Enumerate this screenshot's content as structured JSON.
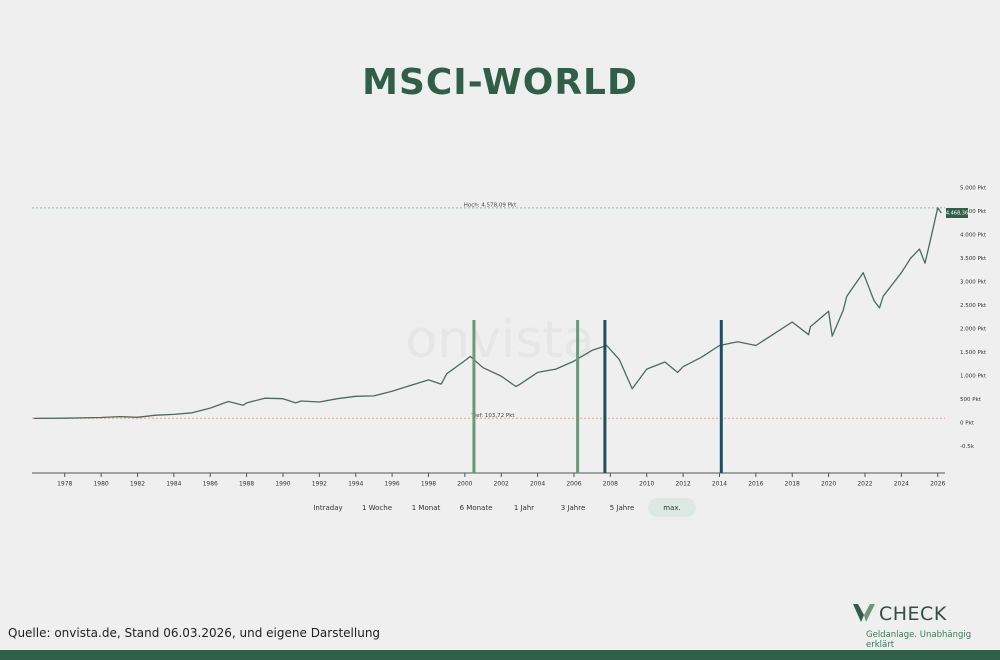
{
  "chart_data": {
    "type": "line",
    "title": "MSCI-WORLD",
    "watermark": "onvista",
    "x": [
      1976.3,
      1978,
      1980,
      1981,
      1982,
      1983,
      1984,
      1985,
      1986,
      1987,
      1987.8,
      1988,
      1989,
      1990,
      1990.7,
      1991,
      1992,
      1993,
      1994,
      1995,
      1996,
      1997,
      1998,
      1998.7,
      1999,
      2000,
      2000.3,
      2001,
      2002,
      2002.8,
      2003,
      2004,
      2005,
      2006,
      2007,
      2007.8,
      2008.5,
      2009.2,
      2010,
      2011,
      2011.7,
      2012,
      2013,
      2014,
      2015,
      2016,
      2017,
      2018,
      2018.9,
      2019,
      2020,
      2020.2,
      2020.8,
      2021,
      2021.9,
      2022.5,
      2022.8,
      2023,
      2023.5,
      2024,
      2024.5,
      2025,
      2025.3,
      2025.6,
      2026,
      2026.2
    ],
    "values": [
      100,
      105,
      120,
      140,
      125,
      170,
      185,
      220,
      320,
      460,
      380,
      430,
      530,
      520,
      430,
      470,
      450,
      520,
      570,
      580,
      680,
      800,
      920,
      830,
      1050,
      1330,
      1420,
      1180,
      1000,
      780,
      820,
      1080,
      1150,
      1320,
      1550,
      1650,
      1350,
      730,
      1150,
      1300,
      1080,
      1200,
      1400,
      1650,
      1730,
      1650,
      1900,
      2150,
      1880,
      2050,
      2380,
      1850,
      2400,
      2700,
      3200,
      2600,
      2450,
      2700,
      2950,
      3200,
      3500,
      3700,
      3400,
      3900,
      4578,
      4468
    ],
    "color": "#4a6b5c",
    "xlim": [
      1976.2,
      2026.4
    ],
    "ylim": [
      -1060,
      5170
    ],
    "xticks": [
      1978,
      1980,
      1982,
      1984,
      1986,
      1988,
      1990,
      1992,
      1994,
      1996,
      1998,
      2000,
      2002,
      2004,
      2006,
      2008,
      2010,
      2012,
      2014,
      2016,
      2018,
      2020,
      2022,
      2024,
      2026
    ],
    "yticks": [
      {
        "value": 5000,
        "label": "5.000 Pkt"
      },
      {
        "value": 4500,
        "label": "4.500 Pkt"
      },
      {
        "value": 4000,
        "label": "4.000 Pkt"
      },
      {
        "value": 3500,
        "label": "3.500 Pkt"
      },
      {
        "value": 3000,
        "label": "3.000 Pkt"
      },
      {
        "value": 2500,
        "label": "2.500 Pkt"
      },
      {
        "value": 2000,
        "label": "2.000 Pkt"
      },
      {
        "value": 1500,
        "label": "1.500 Pkt"
      },
      {
        "value": 1000,
        "label": "1.000 Pkt"
      },
      {
        "value": 500,
        "label": "500 Pkt"
      },
      {
        "value": 0,
        "label": "0 Pkt"
      },
      {
        "value": -500,
        "label": "-0.5k"
      }
    ],
    "high": {
      "value": 4578.09,
      "label": "Hoch: 4.578,09 Pkt",
      "color": "#7fbfa8"
    },
    "low": {
      "value": 103.72,
      "label": "Tief: 103,72 Pkt",
      "color": "#e8a38c"
    },
    "last": {
      "value": 4468.36,
      "label": "4.468,36",
      "color": "#2f5f48"
    },
    "markers": [
      {
        "x": 2000.5,
        "color": "#6b977a"
      },
      {
        "x": 2006.2,
        "color": "#6b977a"
      },
      {
        "x": 2007.7,
        "color": "#1f4e5f"
      },
      {
        "x": 2014.1,
        "color": "#1f4e5f"
      }
    ],
    "range_buttons": [
      "Intraday",
      "1 Woche",
      "1 Monat",
      "6 Monate",
      "1 Jahr",
      "3 Jahre",
      "5 Jahre",
      "max."
    ],
    "active_range": 7
  },
  "footer": {
    "source": "Quelle: onvista.de, Stand 06.03.2026, und eigene Darstellung",
    "brand": "CHECK",
    "tagline": "Geldanlage. Unabhängig erklärt"
  }
}
